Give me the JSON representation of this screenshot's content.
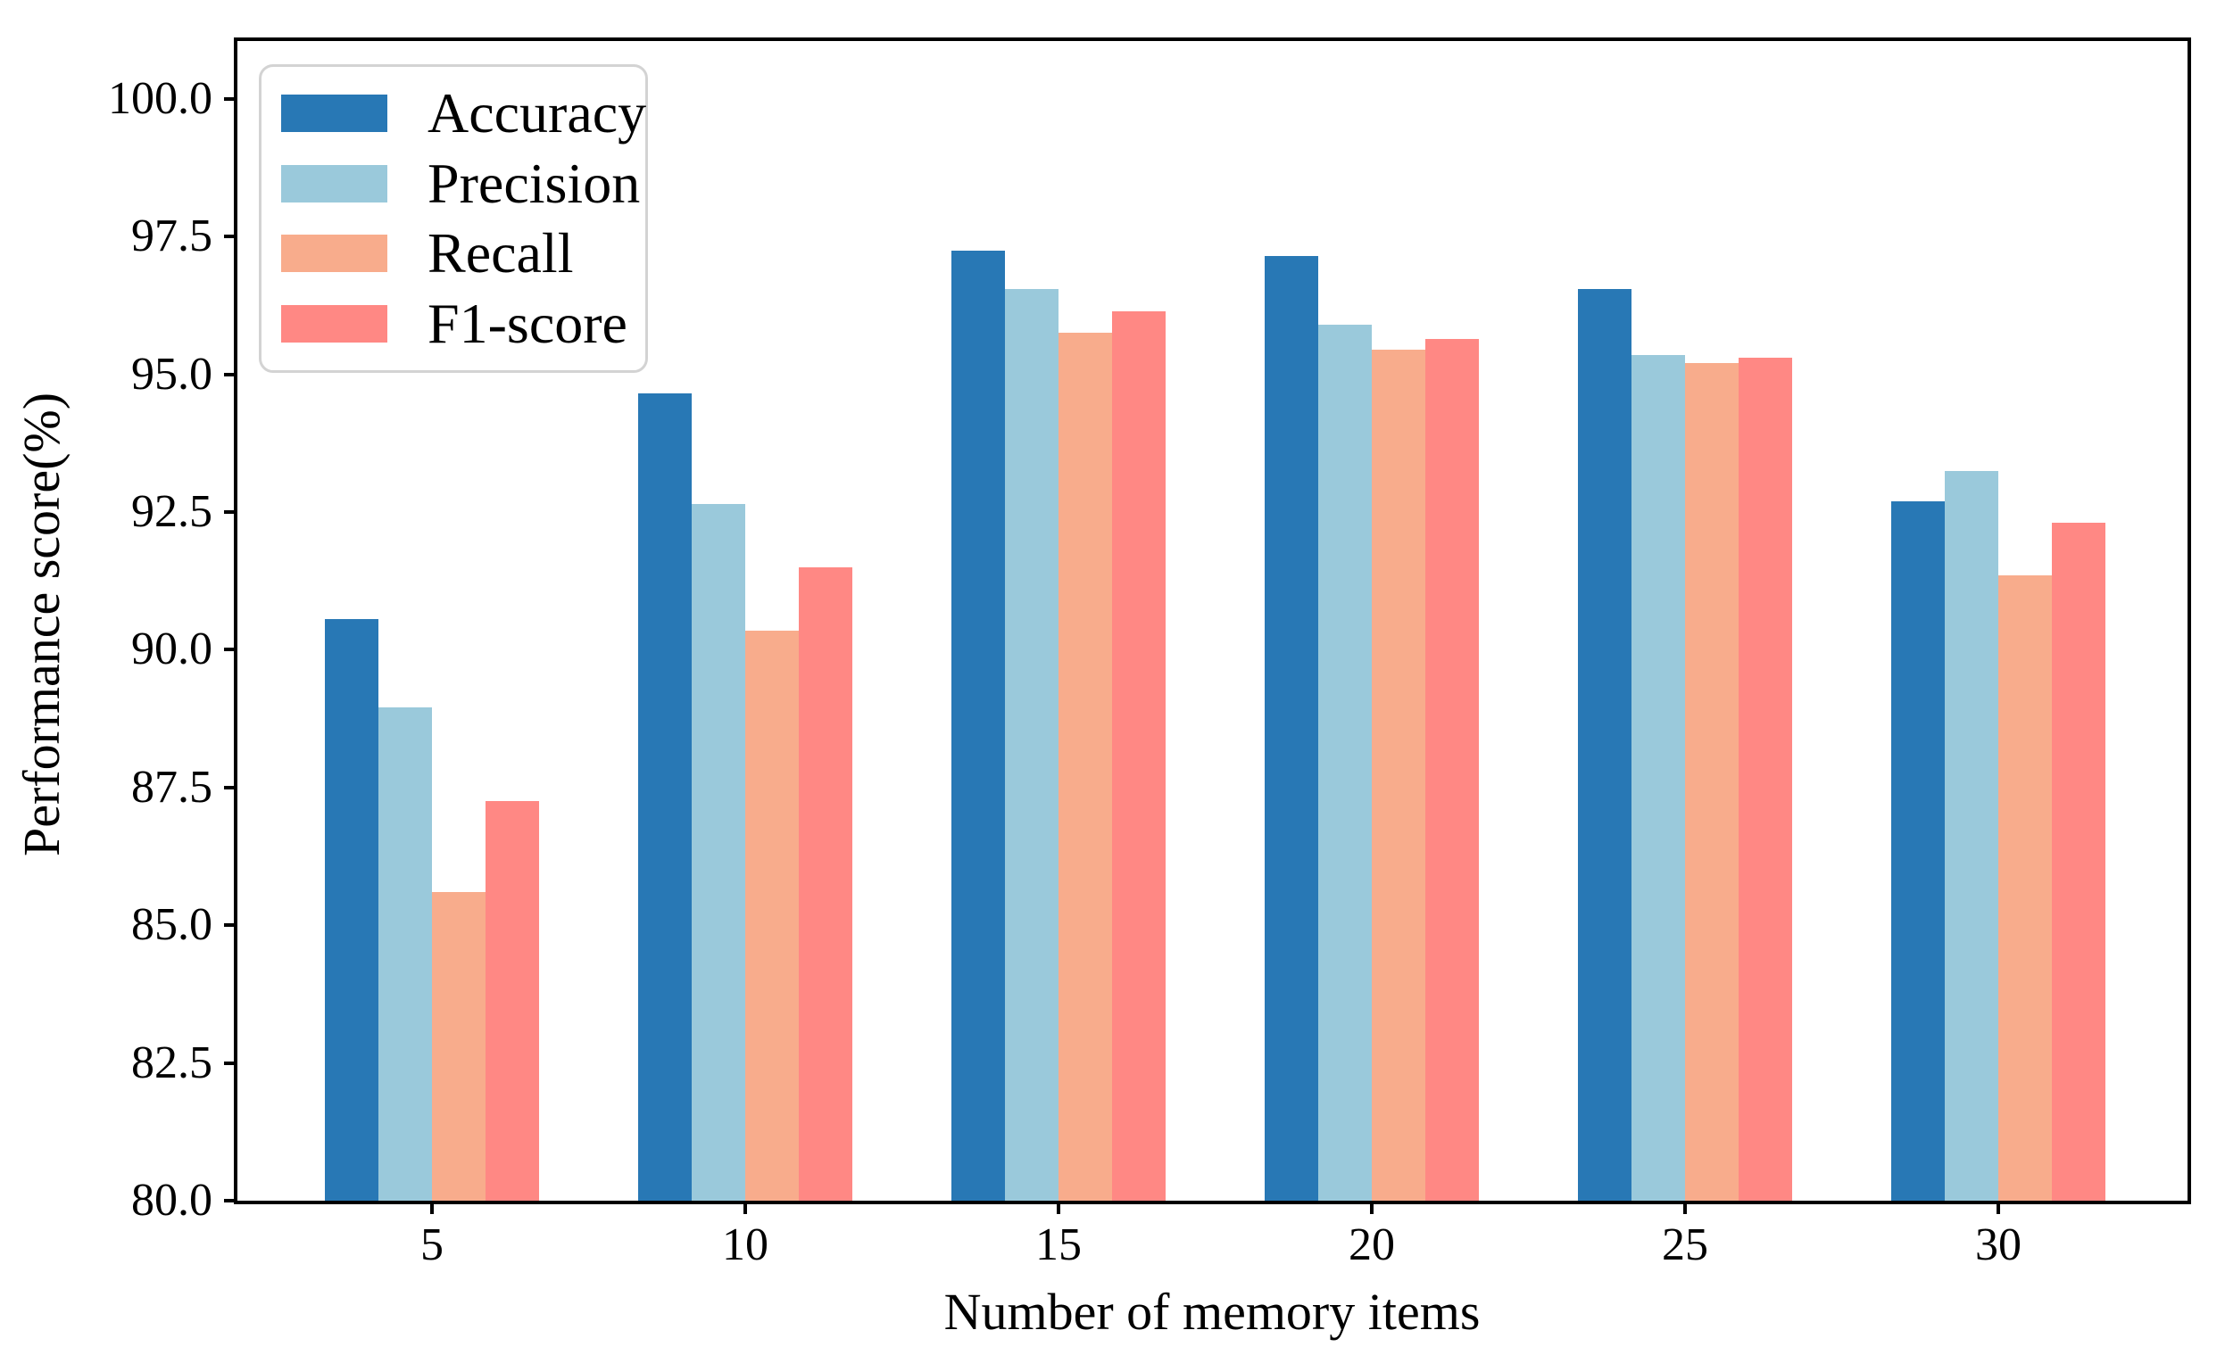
{
  "figure": {
    "background_color": "#ffffff",
    "spine_color": "#000000",
    "legend_border_color": "#d3d3d3"
  },
  "chart_data": {
    "type": "bar",
    "title": "",
    "xlabel": "Number of memory items",
    "ylabel": "Performance score(%)",
    "categories": [
      "5",
      "10",
      "15",
      "20",
      "25",
      "30"
    ],
    "xtick_labels": [
      "5",
      "10",
      "15",
      "20",
      "25",
      "30"
    ],
    "ytick_labels": [
      "80.0",
      "82.5",
      "85.0",
      "87.5",
      "90.0",
      "92.5",
      "95.0",
      "97.5",
      "100.0"
    ],
    "yticks": [
      80.0,
      82.5,
      85.0,
      87.5,
      90.0,
      92.5,
      95.0,
      97.5,
      100.0
    ],
    "ylim": [
      80.0,
      101.05
    ],
    "grid": false,
    "legend_position": "upper left",
    "series": [
      {
        "name": "Accuracy",
        "color": "#2878B5",
        "values": [
          90.55,
          94.65,
          97.25,
          97.15,
          96.55,
          92.7
        ]
      },
      {
        "name": "Precision",
        "color": "#9AC9DB",
        "values": [
          88.95,
          92.65,
          96.55,
          95.9,
          95.35,
          93.25
        ]
      },
      {
        "name": "Recall",
        "color": "#F8AC8C",
        "values": [
          85.6,
          90.35,
          95.75,
          95.45,
          95.2,
          91.35
        ]
      },
      {
        "name": "F1-score",
        "color": "#FF8884",
        "values": [
          87.25,
          91.5,
          96.15,
          95.65,
          95.3,
          92.3
        ]
      }
    ]
  }
}
